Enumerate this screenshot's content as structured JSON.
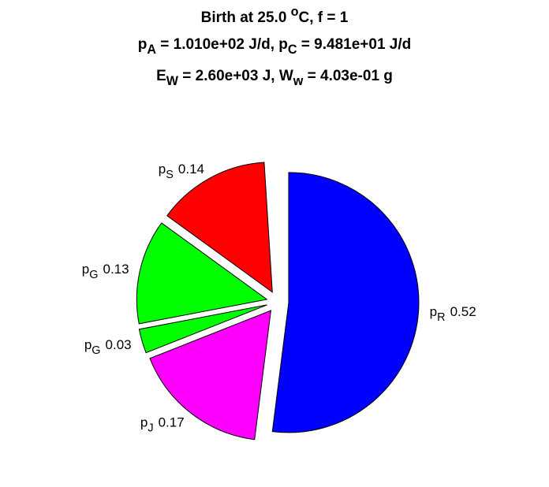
{
  "chart_data": {
    "type": "pie",
    "title": [
      [
        {
          "text": "Birth at 25.0 "
        },
        {
          "text": "o",
          "baseline": "super"
        },
        {
          "text": "C, f = 1"
        }
      ],
      [
        {
          "text": "p"
        },
        {
          "text": "A",
          "baseline": "sub"
        },
        {
          "text": " = 1.010e+02 J/d, p"
        },
        {
          "text": "C",
          "baseline": "sub"
        },
        {
          "text": " = 9.481e+01 J/d"
        }
      ],
      [
        {
          "text": "E"
        },
        {
          "text": "W",
          "baseline": "sub"
        },
        {
          "text": " = 2.60e+03 J, W"
        },
        {
          "text": "w",
          "baseline": "sub"
        },
        {
          "text": " = 4.03e-01 g"
        }
      ]
    ],
    "categories": [
      [
        {
          "text": "p"
        },
        {
          "text": "R",
          "baseline": "sub"
        }
      ],
      [
        {
          "text": "p"
        },
        {
          "text": "J",
          "baseline": "sub"
        }
      ],
      [
        {
          "text": "p"
        },
        {
          "text": "G",
          "baseline": "sub"
        }
      ],
      [
        {
          "text": "p"
        },
        {
          "text": "G",
          "baseline": "sub"
        }
      ],
      [
        {
          "text": "p"
        },
        {
          "text": "S",
          "baseline": "sub"
        }
      ]
    ],
    "values": [
      0.52,
      0.17,
      0.03,
      0.13,
      0.14
    ],
    "colors": [
      "#0000ff",
      "#ff00ff",
      "#00ff00",
      "#00ff00",
      "#ff0000"
    ],
    "explode": true
  }
}
